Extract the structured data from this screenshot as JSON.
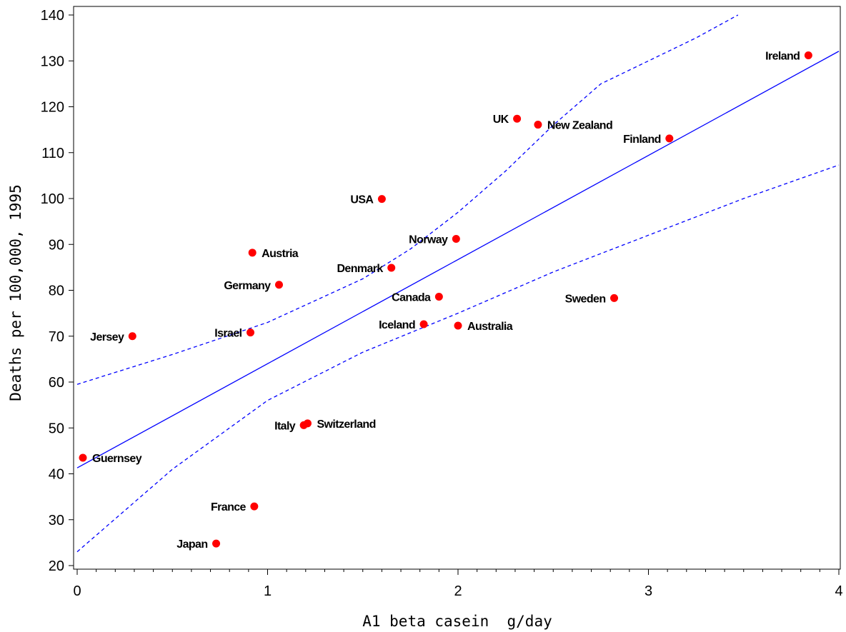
{
  "chart_data": {
    "type": "scatter",
    "title": "",
    "xlabel": "A1 beta casein  g/day",
    "ylabel": "Deaths per 100,000, 1995",
    "xlim": [
      0,
      4
    ],
    "ylim": [
      19,
      141
    ],
    "xticks": [
      0,
      1,
      2,
      3,
      4
    ],
    "yticks": [
      20,
      30,
      40,
      50,
      60,
      70,
      80,
      90,
      100,
      110,
      120,
      130,
      140
    ],
    "x_minor_step": 0.1,
    "grid": false,
    "legend": "none",
    "point_color": "#ff0000",
    "line_color": "#0000ff",
    "points": [
      {
        "label": "Guernsey",
        "x": 0.03,
        "y": 43.5,
        "pos": "right"
      },
      {
        "label": "Jersey",
        "x": 0.29,
        "y": 70.0,
        "pos": "left"
      },
      {
        "label": "Japan",
        "x": 0.73,
        "y": 24.8,
        "pos": "left"
      },
      {
        "label": "Israel",
        "x": 0.91,
        "y": 70.8,
        "pos": "left"
      },
      {
        "label": "Austria",
        "x": 0.92,
        "y": 88.2,
        "pos": "right"
      },
      {
        "label": "France",
        "x": 0.93,
        "y": 32.9,
        "pos": "left"
      },
      {
        "label": "Germany",
        "x": 1.06,
        "y": 81.2,
        "pos": "left"
      },
      {
        "label": "Italy",
        "x": 1.19,
        "y": 50.6,
        "pos": "left"
      },
      {
        "label": "Switzerland",
        "x": 1.21,
        "y": 51.0,
        "pos": "right"
      },
      {
        "label": "USA",
        "x": 1.6,
        "y": 99.9,
        "pos": "left"
      },
      {
        "label": "Denmark",
        "x": 1.65,
        "y": 84.9,
        "pos": "left"
      },
      {
        "label": "Iceland",
        "x": 1.82,
        "y": 72.6,
        "pos": "left"
      },
      {
        "label": "Canada",
        "x": 1.9,
        "y": 78.6,
        "pos": "left"
      },
      {
        "label": "Norway",
        "x": 1.99,
        "y": 91.2,
        "pos": "left"
      },
      {
        "label": "Australia",
        "x": 2.0,
        "y": 72.3,
        "pos": "right"
      },
      {
        "label": "UK",
        "x": 2.31,
        "y": 117.4,
        "pos": "left"
      },
      {
        "label": "New Zealand",
        "x": 2.42,
        "y": 116.1,
        "pos": "right"
      },
      {
        "label": "Sweden",
        "x": 2.82,
        "y": 78.3,
        "pos": "left"
      },
      {
        "label": "Finland",
        "x": 3.11,
        "y": 113.1,
        "pos": "left"
      },
      {
        "label": "Ireland",
        "x": 3.84,
        "y": 131.2,
        "pos": "left"
      }
    ],
    "fit_line": {
      "intercept": 41.3,
      "slope": 22.7
    },
    "confidence_band": {
      "upper": [
        [
          0,
          59.5
        ],
        [
          0.5,
          66.0
        ],
        [
          1,
          73.0
        ],
        [
          1.5,
          82.5
        ],
        [
          1.75,
          89.0
        ],
        [
          2,
          97.0
        ],
        [
          2.25,
          106.0
        ],
        [
          2.5,
          116.0
        ],
        [
          2.75,
          125.0
        ],
        [
          3,
          130.0
        ],
        [
          3.25,
          135.0
        ],
        [
          3.47,
          140.0
        ]
      ],
      "lower": [
        [
          0,
          23.0
        ],
        [
          0.5,
          41.0
        ],
        [
          1,
          56.0
        ],
        [
          1.5,
          66.5
        ],
        [
          2,
          75.0
        ],
        [
          2.5,
          84.0
        ],
        [
          3,
          92.0
        ],
        [
          3.5,
          100.0
        ],
        [
          4,
          107.3
        ]
      ]
    }
  }
}
